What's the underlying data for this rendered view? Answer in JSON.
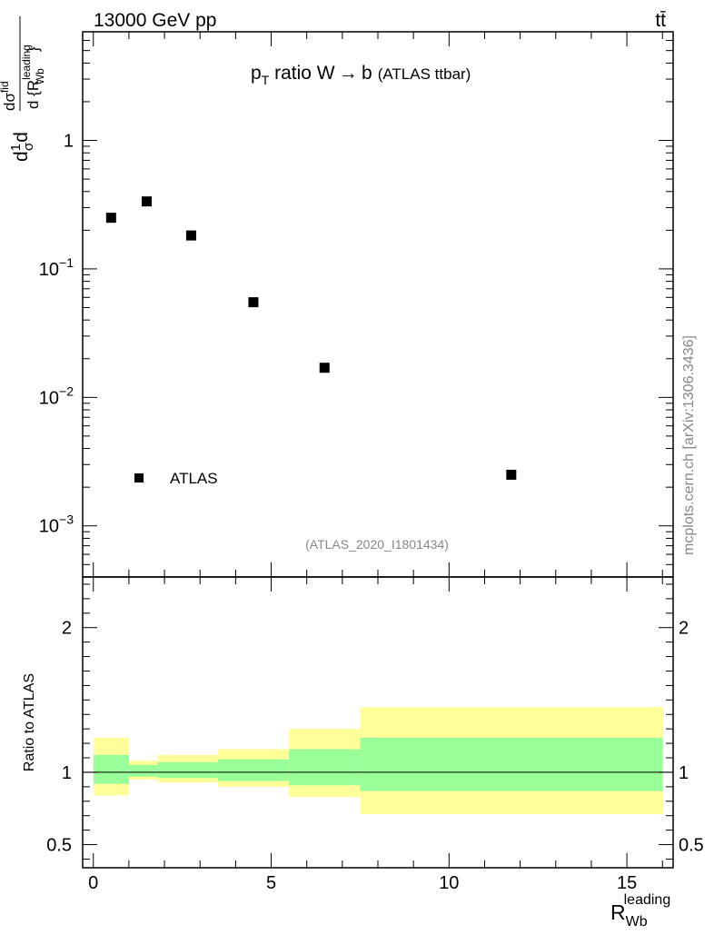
{
  "header": {
    "energy_label": "13000 GeV pp",
    "process_label": "tt̄"
  },
  "plot_title": {
    "main": "p",
    "sub": "T",
    "rest": " ratio W → b",
    "small": "(ATLAS ttbar)"
  },
  "analysis_id": "(ATLAS_2020_I1801434)",
  "side_label": "mcplots.cern.ch [arXiv:1306.3436]",
  "legend": {
    "label": "ATLAS"
  },
  "main_ylabel": {
    "prefix": "d",
    "frac_num": "1",
    "frac_den": "σ",
    "sigma": "dσ",
    "sigma_sup": "fid",
    "den": "d {R",
    "den_sup": "leading",
    "den_sub": "Wb",
    "close": "}"
  },
  "ratio_ylabel": "Ratio to ATLAS",
  "xlabel": {
    "main": "R",
    "sub": "Wb",
    "sup": "leading"
  },
  "colors": {
    "band_outer": "#ffff99",
    "band_inner": "#99ff99",
    "marker": "#000000"
  },
  "chart_data": [
    {
      "type": "scatter",
      "yscale": "log",
      "xlim": [
        -0.3,
        16.3
      ],
      "ylim": [
        0.0004,
        7
      ],
      "y_ticks": [
        {
          "value": 1,
          "label": "1",
          "sup": ""
        },
        {
          "value": 0.1,
          "label": "10",
          "sup": "−1"
        },
        {
          "value": 0.01,
          "label": "10",
          "sup": "−2"
        },
        {
          "value": 0.001,
          "label": "10",
          "sup": "−3"
        }
      ],
      "series": [
        {
          "name": "ATLAS",
          "x": [
            0.5,
            1.5,
            2.75,
            4.5,
            6.5,
            11.75
          ],
          "y": [
            0.25,
            0.335,
            0.182,
            0.055,
            0.017,
            0.0025
          ]
        }
      ]
    },
    {
      "type": "area",
      "xlim": [
        -0.3,
        16.3
      ],
      "ylim": [
        0.34,
        2.35
      ],
      "y_ticks": [
        {
          "value": 2,
          "label": "2"
        },
        {
          "value": 1,
          "label": "1"
        },
        {
          "value": 0.5,
          "label": "0.5"
        }
      ],
      "x_ticks": [
        {
          "value": 0,
          "label": "0"
        },
        {
          "value": 5,
          "label": "5"
        },
        {
          "value": 10,
          "label": "10"
        },
        {
          "value": 15,
          "label": "15"
        }
      ],
      "reference_line": 1,
      "bins": [
        {
          "x0": 0,
          "x1": 1,
          "outer": [
            0.84,
            1.24
          ],
          "inner": [
            0.92,
            1.12
          ]
        },
        {
          "x0": 1,
          "x1": 1.8,
          "outer": [
            0.95,
            1.08
          ],
          "inner": [
            0.97,
            1.05
          ]
        },
        {
          "x0": 1.8,
          "x1": 3.5,
          "outer": [
            0.93,
            1.12
          ],
          "inner": [
            0.96,
            1.07
          ]
        },
        {
          "x0": 3.5,
          "x1": 5.5,
          "outer": [
            0.9,
            1.16
          ],
          "inner": [
            0.94,
            1.09
          ]
        },
        {
          "x0": 5.5,
          "x1": 7.5,
          "outer": [
            0.83,
            1.3
          ],
          "inner": [
            0.91,
            1.16
          ]
        },
        {
          "x0": 7.5,
          "x1": 16,
          "outer": [
            0.71,
            1.45
          ],
          "inner": [
            0.87,
            1.24
          ]
        }
      ]
    }
  ]
}
